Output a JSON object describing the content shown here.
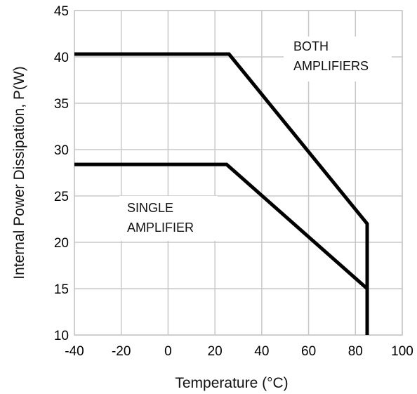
{
  "chart_data": {
    "type": "line",
    "title": "",
    "xlabel": "Temperature (°C)",
    "ylabel": "Internal Power Dissipation, P(W)",
    "xlim": [
      -40,
      100
    ],
    "ylim": [
      10,
      45
    ],
    "xticks": [
      -40,
      -20,
      0,
      20,
      40,
      60,
      80,
      100
    ],
    "yticks": [
      10,
      15,
      20,
      25,
      30,
      35,
      40,
      45
    ],
    "grid": true,
    "series": [
      {
        "label_lines": [
          "BOTH",
          "AMPLIFIERS"
        ],
        "color": "#000000",
        "x": [
          -40,
          26,
          85,
          85
        ],
        "y": [
          40.3,
          40.3,
          22,
          10
        ]
      },
      {
        "label_lines": [
          "SINGLE",
          "AMPLIFIER"
        ],
        "color": "#000000",
        "x": [
          -40,
          25,
          85,
          85
        ],
        "y": [
          28.4,
          28.4,
          15,
          10
        ]
      }
    ]
  }
}
